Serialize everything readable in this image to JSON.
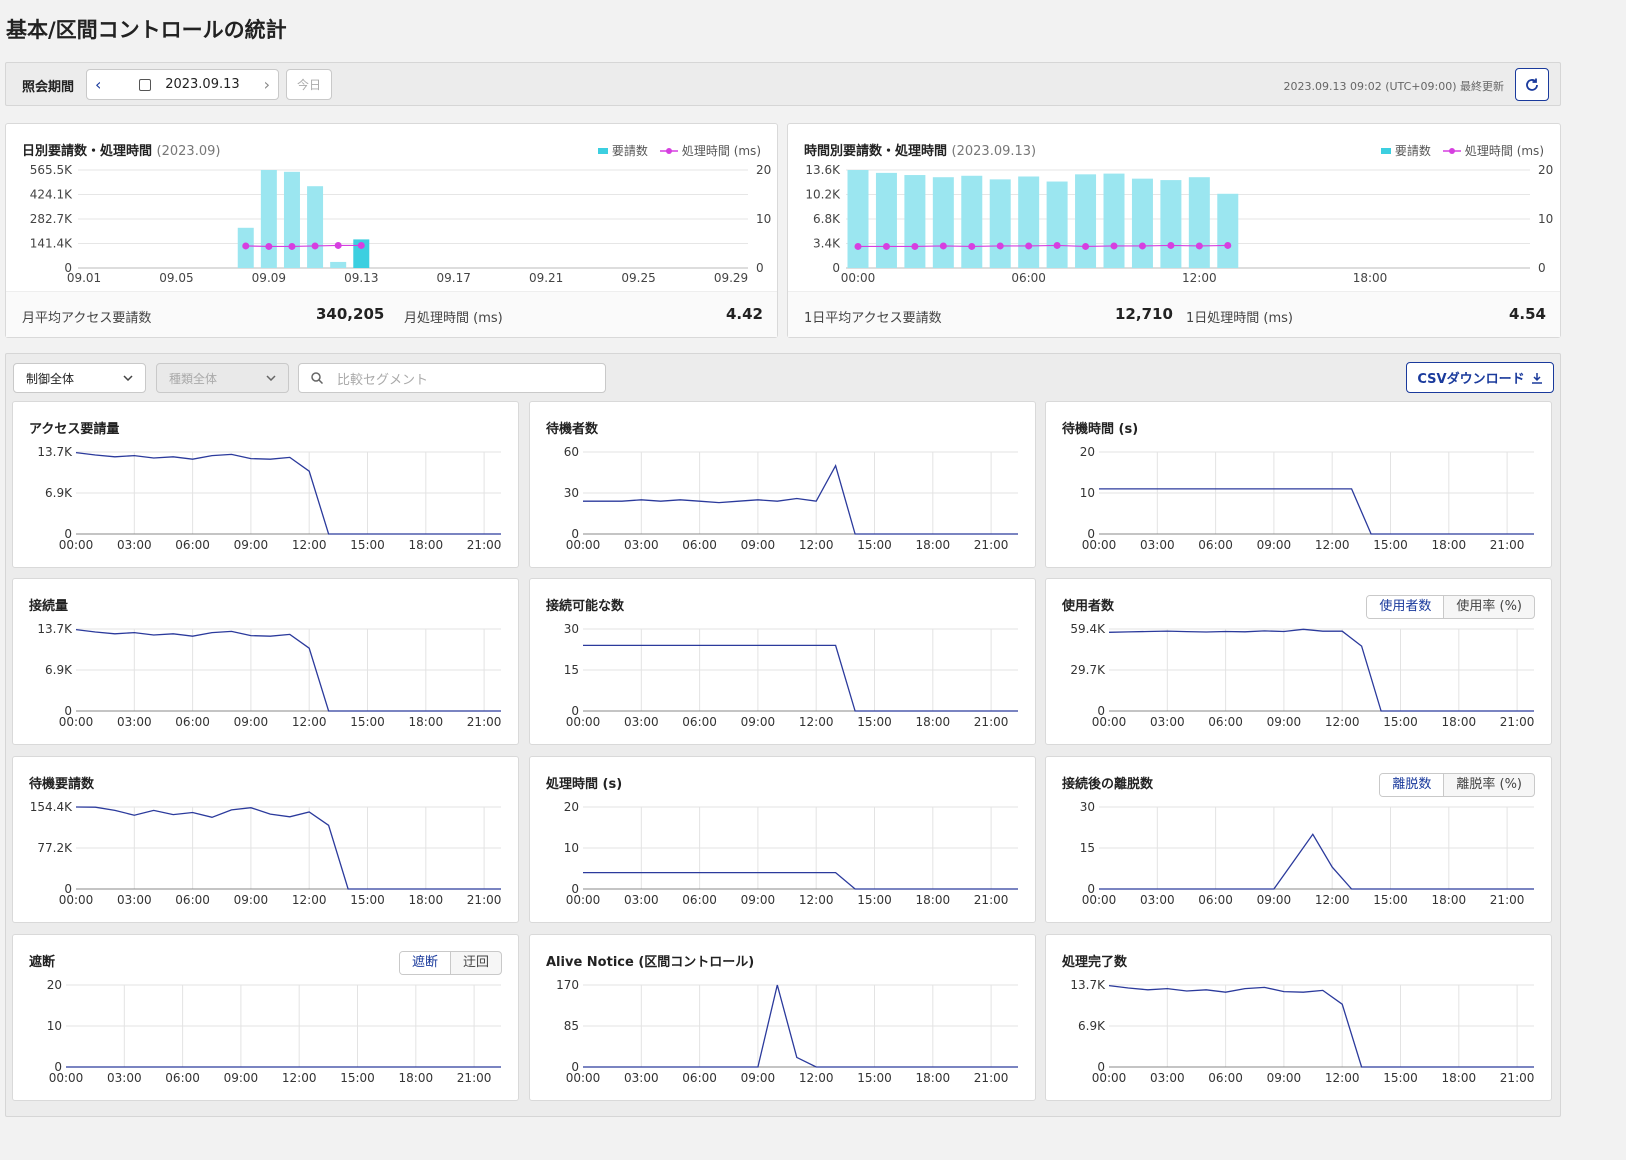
{
  "title": "基本/区間コントロールの統計",
  "period": {
    "label": "照会期間",
    "date": "2023.09.13",
    "today": "今日",
    "last_updated": "2023.09.13 09:02 (UTC+09:00) 最終更新"
  },
  "summary_daily": {
    "title": "日別要請数・処理時間",
    "sub": "(2023.09)",
    "legend_req": "要請数",
    "legend_time": "処理時間 (ms)",
    "avg_label": "月平均アクセス要請数",
    "avg_value": "340,205",
    "time_label": "月処理時間 (ms)",
    "time_value": "4.42"
  },
  "summary_hourly": {
    "title": "時間別要請数・処理時間",
    "sub": "(2023.09.13)",
    "legend_req": "要請数",
    "legend_time": "処理時間 (ms)",
    "avg_label": "1日平均アクセス要請数",
    "avg_value": "12,710",
    "time_label": "1日処理時間 (ms)",
    "time_value": "4.54"
  },
  "filters": {
    "control": "制御全体",
    "type": "種類全体",
    "compare_placeholder": "比較セグメント",
    "csv": "CSVダウンロード"
  },
  "toggles": {
    "users": [
      "使用者数",
      "使用率 (%)"
    ],
    "leave": [
      "離脱数",
      "離脱率 (%)"
    ],
    "block": [
      "遮断",
      "迂回"
    ]
  },
  "colors": {
    "bar": "#9be6f0",
    "bar_active": "#3ccfe0",
    "time_line": "#d63fe0",
    "line": "#2b3a9c",
    "accent": "#1a3a9c"
  },
  "chart_data": [
    {
      "type": "bar",
      "title": "日別要請数・処理時間",
      "x_ticks": [
        "09.01",
        "09.05",
        "09.09",
        "09.13",
        "09.17",
        "09.21",
        "09.25",
        "09.29"
      ],
      "y_ticks_left": [
        "565.5K",
        "424.1K",
        "282.7K",
        "141.4K",
        "0"
      ],
      "y_ticks_right": [
        "20",
        "10",
        "0"
      ],
      "ylim": [
        0,
        565500
      ],
      "y2lim": [
        0,
        20
      ],
      "categories": [
        "09.08",
        "09.09",
        "09.10",
        "09.11",
        "09.12",
        "09.13"
      ],
      "series": [
        {
          "name": "要請数",
          "values": [
            232000,
            565500,
            555000,
            472000,
            35000,
            165000
          ]
        },
        {
          "name": "処理時間 (ms)",
          "values": [
            4.5,
            4.4,
            4.4,
            4.5,
            4.6,
            4.6
          ]
        }
      ]
    },
    {
      "type": "bar",
      "title": "時間別要請数・処理時間",
      "x_ticks": [
        "00:00",
        "06:00",
        "12:00",
        "18:00"
      ],
      "y_ticks_left": [
        "13.6K",
        "10.2K",
        "6.8K",
        "3.4K",
        "0"
      ],
      "y_ticks_right": [
        "20",
        "10",
        "0"
      ],
      "ylim": [
        0,
        13600
      ],
      "y2lim": [
        0,
        20
      ],
      "categories": [
        "00",
        "01",
        "02",
        "03",
        "04",
        "05",
        "06",
        "07",
        "08",
        "09",
        "10",
        "11",
        "12",
        "13"
      ],
      "series": [
        {
          "name": "要請数",
          "values": [
            13600,
            13200,
            12900,
            12600,
            12800,
            12300,
            12700,
            12000,
            13000,
            13100,
            12400,
            12200,
            12600,
            10300
          ]
        },
        {
          "name": "処理時間 (ms)",
          "values": [
            4.4,
            4.4,
            4.4,
            4.5,
            4.4,
            4.5,
            4.5,
            4.6,
            4.4,
            4.5,
            4.5,
            4.6,
            4.5,
            4.6
          ]
        }
      ]
    },
    {
      "type": "line",
      "title": "アクセス要請量",
      "y_ticks": [
        "13.7K",
        "6.9K",
        "0"
      ],
      "ylim": [
        0,
        13700
      ],
      "x_ticks": [
        "00:00",
        "03:00",
        "06:00",
        "09:00",
        "12:00",
        "15:00",
        "18:00",
        "21:00"
      ],
      "values": [
        13600,
        13200,
        12900,
        13100,
        12700,
        12900,
        12500,
        13100,
        13300,
        12600,
        12500,
        12800,
        10500,
        0,
        0,
        0,
        0,
        0,
        0,
        0,
        0,
        0,
        0,
        0
      ]
    },
    {
      "type": "line",
      "title": "待機者数",
      "y_ticks": [
        "60",
        "30",
        "0"
      ],
      "ylim": [
        0,
        60
      ],
      "x_ticks": [
        "00:00",
        "03:00",
        "06:00",
        "09:00",
        "12:00",
        "15:00",
        "18:00",
        "21:00"
      ],
      "values": [
        24,
        24,
        24,
        25,
        24,
        25,
        24,
        23,
        24,
        25,
        24,
        26,
        24,
        50,
        0,
        0,
        0,
        0,
        0,
        0,
        0,
        0,
        0,
        0
      ]
    },
    {
      "type": "line",
      "title": "待機時間 (s)",
      "y_ticks": [
        "20",
        "10",
        "0"
      ],
      "ylim": [
        0,
        20
      ],
      "x_ticks": [
        "00:00",
        "03:00",
        "06:00",
        "09:00",
        "12:00",
        "15:00",
        "18:00",
        "21:00"
      ],
      "values": [
        11,
        11,
        11,
        11,
        11,
        11,
        11,
        11,
        11,
        11,
        11,
        11,
        11,
        11,
        0,
        0,
        0,
        0,
        0,
        0,
        0,
        0,
        0,
        0
      ]
    },
    {
      "type": "line",
      "title": "接続量",
      "y_ticks": [
        "13.7K",
        "6.9K",
        "0"
      ],
      "ylim": [
        0,
        13700
      ],
      "x_ticks": [
        "00:00",
        "03:00",
        "06:00",
        "09:00",
        "12:00",
        "15:00",
        "18:00",
        "21:00"
      ],
      "values": [
        13600,
        13200,
        12900,
        13100,
        12700,
        12900,
        12500,
        13100,
        13300,
        12600,
        12500,
        12800,
        10500,
        0,
        0,
        0,
        0,
        0,
        0,
        0,
        0,
        0,
        0,
        0
      ]
    },
    {
      "type": "line",
      "title": "接続可能な数",
      "y_ticks": [
        "30",
        "15",
        "0"
      ],
      "ylim": [
        0,
        30
      ],
      "x_ticks": [
        "00:00",
        "03:00",
        "06:00",
        "09:00",
        "12:00",
        "15:00",
        "18:00",
        "21:00"
      ],
      "values": [
        24,
        24,
        24,
        24,
        24,
        24,
        24,
        24,
        24,
        24,
        24,
        24,
        24,
        24,
        0,
        0,
        0,
        0,
        0,
        0,
        0,
        0,
        0,
        0
      ]
    },
    {
      "type": "line",
      "title": "使用者数",
      "y_ticks": [
        "59.4K",
        "29.7K",
        "0"
      ],
      "ylim": [
        0,
        59400
      ],
      "x_ticks": [
        "00:00",
        "03:00",
        "06:00",
        "09:00",
        "12:00",
        "15:00",
        "18:00",
        "21:00"
      ],
      "values": [
        57000,
        57300,
        57600,
        57900,
        57500,
        57200,
        57600,
        57400,
        58000,
        57600,
        59200,
        57800,
        57800,
        47000,
        0,
        0,
        0,
        0,
        0,
        0,
        0,
        0,
        0,
        0
      ]
    },
    {
      "type": "line",
      "title": "待機要請数",
      "y_ticks": [
        "154.4K",
        "77.2K",
        "0"
      ],
      "ylim": [
        0,
        154400
      ],
      "x_ticks": [
        "00:00",
        "03:00",
        "06:00",
        "09:00",
        "12:00",
        "15:00",
        "18:00",
        "21:00"
      ],
      "values": [
        154400,
        154000,
        148000,
        139000,
        148000,
        140000,
        144000,
        135000,
        149000,
        153000,
        141000,
        136000,
        145000,
        120000,
        0,
        0,
        0,
        0,
        0,
        0,
        0,
        0,
        0,
        0
      ]
    },
    {
      "type": "line",
      "title": "処理時間 (s)",
      "y_ticks": [
        "20",
        "10",
        "0"
      ],
      "ylim": [
        0,
        20
      ],
      "x_ticks": [
        "00:00",
        "03:00",
        "06:00",
        "09:00",
        "12:00",
        "15:00",
        "18:00",
        "21:00"
      ],
      "values": [
        4,
        4,
        4,
        4,
        4,
        4,
        4,
        4,
        4,
        4,
        4,
        4,
        4,
        4,
        0,
        0,
        0,
        0,
        0,
        0,
        0,
        0,
        0,
        0
      ]
    },
    {
      "type": "line",
      "title": "接続後の離脱数",
      "y_ticks": [
        "30",
        "15",
        "0"
      ],
      "ylim": [
        0,
        30
      ],
      "x_ticks": [
        "00:00",
        "03:00",
        "06:00",
        "09:00",
        "12:00",
        "15:00",
        "18:00",
        "21:00"
      ],
      "values": [
        0,
        0,
        0,
        0,
        0,
        0,
        0,
        0,
        0,
        0,
        10,
        20,
        8,
        0,
        0,
        0,
        0,
        0,
        0,
        0,
        0,
        0,
        0,
        0
      ]
    },
    {
      "type": "line",
      "title": "遮断",
      "y_ticks": [
        "20",
        "10",
        "0"
      ],
      "ylim": [
        0,
        20
      ],
      "x_ticks": [
        "00:00",
        "03:00",
        "06:00",
        "09:00",
        "12:00",
        "15:00",
        "18:00",
        "21:00"
      ],
      "values": [
        0,
        0,
        0,
        0,
        0,
        0,
        0,
        0,
        0,
        0,
        0,
        0,
        0,
        0,
        0,
        0,
        0,
        0,
        0,
        0,
        0,
        0,
        0,
        0
      ]
    },
    {
      "type": "line",
      "title": "Alive Notice (区間コントロール)",
      "y_ticks": [
        "170",
        "85",
        "0"
      ],
      "ylim": [
        0,
        170
      ],
      "x_ticks": [
        "00:00",
        "03:00",
        "06:00",
        "09:00",
        "12:00",
        "15:00",
        "18:00",
        "21:00"
      ],
      "values": [
        0,
        0,
        0,
        0,
        0,
        0,
        0,
        0,
        0,
        0,
        170,
        20,
        0,
        0,
        0,
        0,
        0,
        0,
        0,
        0,
        0,
        0,
        0,
        0
      ]
    },
    {
      "type": "line",
      "title": "処理完了数",
      "y_ticks": [
        "13.7K",
        "6.9K",
        "0"
      ],
      "ylim": [
        0,
        13700
      ],
      "x_ticks": [
        "00:00",
        "03:00",
        "06:00",
        "09:00",
        "12:00",
        "15:00",
        "18:00",
        "21:00"
      ],
      "values": [
        13600,
        13200,
        12900,
        13100,
        12700,
        12900,
        12500,
        13100,
        13300,
        12600,
        12500,
        12800,
        10500,
        0,
        0,
        0,
        0,
        0,
        0,
        0,
        0,
        0,
        0,
        0
      ]
    }
  ]
}
